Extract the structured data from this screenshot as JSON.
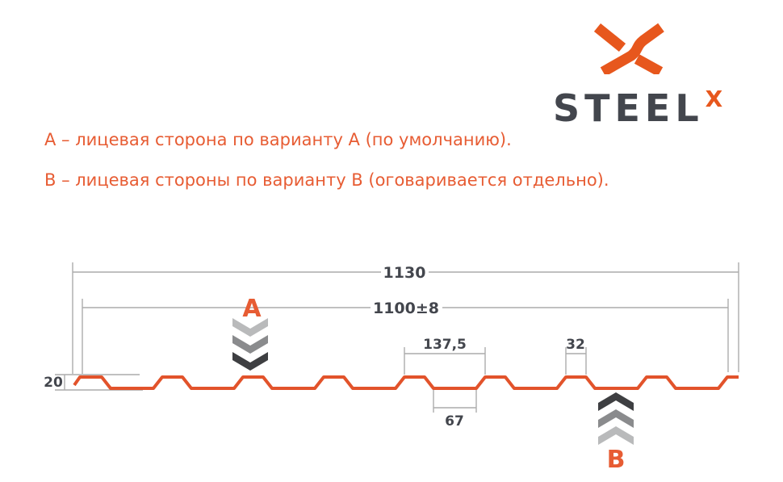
{
  "colors": {
    "brand_orange": "#E7571D",
    "profile_orange": "#E2532B",
    "text_orange": "#E75C33",
    "dim_text": "#43464D",
    "line_gray": "#ACACAC",
    "chevron_light": "#B9BABB",
    "chevron_mid": "#8A8B8D",
    "chevron_dark": "#3E3F42"
  },
  "logo": {
    "brand": "STEEL",
    "sup": "X"
  },
  "notes": {
    "line_a": "A – лицевая сторона по варианту A (по умолчанию).",
    "line_b": "B – лицевая стороны по варианту B (оговаривается отдельно)."
  },
  "diagram": {
    "dim_total": "1130",
    "dim_useful": "1100±8",
    "dim_pitch": "137,5",
    "dim_rib_top": "32",
    "dim_valley": "67",
    "dim_height": "20",
    "label_a": "A",
    "label_b": "B"
  }
}
